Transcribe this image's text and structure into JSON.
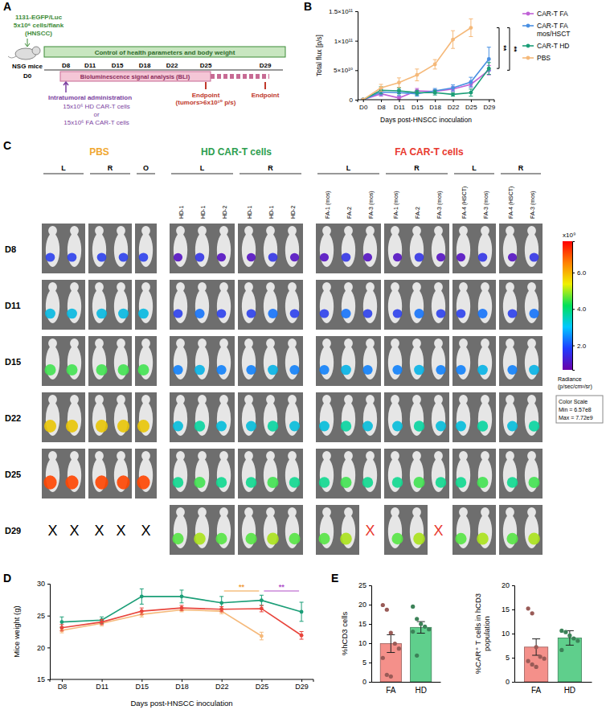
{
  "diagram_a": {
    "panel": "A",
    "cells": [
      "1131-EGFP/Luc",
      "5x10⁶ cells/flank",
      "(HNSCC)"
    ],
    "mouse_label": "NSG mice",
    "start_day": "D0",
    "control_bar": "Control of health parameters and body weight",
    "days": [
      "D8",
      "D11",
      "D15",
      "D18",
      "D22",
      "D25",
      "D29"
    ],
    "bli_bar": "Bioluminescence signal analysis (BLI)",
    "endpoint_early": "Endpoint (tumors>6x10¹⁰ p/s)",
    "endpoint_final": "Endpoint",
    "treatment_title": "Intratumoral administration",
    "treatment_options": [
      "15x10⁶ HD CAR-T cells",
      "or",
      "15x10⁶ FA CAR-T cells"
    ]
  },
  "chart_data": [
    {
      "panel": "B",
      "type": "line",
      "marker": "circle",
      "legend": "right",
      "categories": [
        "D0",
        "D8",
        "D11",
        "D15",
        "D18",
        "D22",
        "D25",
        "D29"
      ],
      "x_label": "Days post-HNSCC inoculation",
      "y_label": "Total flux [p/s]",
      "ylim": [
        0,
        150000000000
      ],
      "yticks": [
        0,
        {
          "value": 50000000000,
          "label": "5×10¹⁰"
        },
        {
          "value": 100000000000,
          "label": "1×10¹¹"
        },
        {
          "value": 150000000000,
          "label": "1.5×10¹¹"
        }
      ],
      "series": [
        {
          "name": "CAR-T FA",
          "color": "#c061d6",
          "values": [
            0,
            10000000000.0,
            3000000000.0,
            15000000000.0,
            14000000000.0,
            18000000000.0,
            26000000000.0,
            50000000000.0
          ],
          "error": [
            0,
            4000000000.0,
            3000000000.0,
            4000000000.0,
            3000000000.0,
            4000000000.0,
            5000000000.0,
            8000000000.0
          ]
        },
        {
          "name": "CAR-T FA mos/HSCT",
          "color": "#4a90e2",
          "values": [
            0,
            13000000000.0,
            12000000000.0,
            10000000000.0,
            15000000000.0,
            20000000000.0,
            30000000000.0,
            69000000000.0
          ],
          "error": [
            0,
            5000000000.0,
            5000000000.0,
            4000000000.0,
            4000000000.0,
            5000000000.0,
            8000000000.0,
            20000000000.0
          ]
        },
        {
          "name": "CAR-T HD",
          "color": "#1b9e77",
          "values": [
            0,
            16000000000.0,
            15000000000.0,
            12000000000.0,
            12000000000.0,
            9000000000.0,
            12000000000.0,
            53000000000.0
          ],
          "error": [
            0,
            6000000000.0,
            5000000000.0,
            4000000000.0,
            4000000000.0,
            3000000000.0,
            6000000000.0,
            10000000000.0
          ]
        },
        {
          "name": "PBS",
          "color": "#f5b97a",
          "values": [
            0,
            20000000000.0,
            29000000000.0,
            42000000000.0,
            60000000000.0,
            102000000000.0,
            122000000000.0,
            null
          ],
          "error": [
            0,
            6000000000.0,
            8000000000.0,
            10000000000.0,
            8000000000.0,
            15000000000.0,
            15000000000.0,
            null
          ]
        }
      ],
      "annotations": [
        {
          "text": "**",
          "between": [
            "CAR-T HD",
            "PBS"
          ]
        },
        {
          "text": "**",
          "between": [
            "CAR-T FA",
            "PBS"
          ]
        }
      ]
    },
    {
      "panel": "D",
      "type": "line",
      "marker": "circle",
      "categories": [
        "D8",
        "D11",
        "D15",
        "D18",
        "D22",
        "D25",
        "D29"
      ],
      "x_label": "Days post-HNSCC inoculation",
      "y_label": "Mice weight (g)",
      "ylim": [
        15,
        30
      ],
      "yticks": [
        15,
        20,
        25,
        30
      ],
      "series": [
        {
          "color": "#f5b97a",
          "values": [
            22.7,
            23.8,
            25.2,
            25.9,
            25.7,
            21.8,
            null
          ],
          "error": [
            0.4,
            0.4,
            0.4,
            0.3,
            0.4,
            0.6,
            null
          ]
        },
        {
          "color": "#1b9e77",
          "values": [
            24.0,
            24.3,
            28.0,
            28.0,
            27.0,
            27.4,
            25.6
          ],
          "error": [
            0.8,
            0.5,
            1.2,
            1.0,
            1.0,
            0.8,
            1.5
          ]
        },
        {
          "color": "#e8453c",
          "values": [
            23.1,
            24.0,
            25.7,
            26.2,
            26.0,
            26.1,
            21.9
          ],
          "error": [
            0.5,
            0.4,
            0.5,
            0.4,
            0.4,
            0.5,
            0.6
          ]
        }
      ],
      "annotations": [
        {
          "text": "**",
          "color": "#f0a040",
          "from": "D22",
          "to": "D25"
        },
        {
          "text": "**",
          "color": "#b04fc8",
          "from": "D25",
          "to": "D29"
        }
      ]
    },
    {
      "panel": "E",
      "type": "bar",
      "categories": [
        "FA",
        "HD"
      ],
      "values": [
        9.9,
        14.1
      ],
      "error": [
        2.3,
        1.5
      ],
      "points": [
        [
          19.9,
          18.7,
          12.7,
          9.9,
          8.6,
          6.2,
          1.8,
          1.4
        ],
        [
          19.5,
          16.3,
          15.0,
          14.3,
          13.6,
          13.0,
          6.8
        ]
      ],
      "colors": [
        "#f4908a",
        "#5fcf8c"
      ],
      "y_label": "%hCD3 cells",
      "ylim": [
        0,
        25
      ],
      "yticks": [
        0,
        5,
        10,
        15,
        20,
        25
      ]
    },
    {
      "type": "bar",
      "categories": [
        "FA",
        "HD"
      ],
      "values": [
        7.2,
        9.1
      ],
      "error": [
        1.7,
        1.5
      ],
      "points": [
        [
          15.2,
          14.2,
          7.2,
          5.2,
          4.8,
          4.3,
          3.6,
          3.1
        ],
        [
          10.6,
          10.3,
          9.6,
          9.0,
          8.5,
          6.6
        ]
      ],
      "colors": [
        "#f4908a",
        "#5fcf8c"
      ],
      "y_label": "%CAR⁺ T cells in hCD3 population",
      "ylim": [
        0,
        20
      ],
      "yticks": [
        0,
        5,
        10,
        15,
        20
      ]
    }
  ],
  "image_panel_c": {
    "panel": "C",
    "groups": [
      {
        "title": "PBS",
        "color": "#f0a830",
        "x_color": "#000000",
        "boxes": [
          {
            "side": "L",
            "mice": [
              null,
              null
            ]
          },
          {
            "side": "R",
            "mice": [
              null,
              null
            ]
          },
          {
            "side": "O",
            "mice": [
              null
            ]
          }
        ]
      },
      {
        "title": "HD CAR-T cells",
        "color": "#2e9e4f",
        "boxes": [
          {
            "side": "L",
            "mice": [
              "HD-1",
              "HD-1",
              "HD-2"
            ]
          },
          {
            "side": "R",
            "mice": [
              "HD-1",
              "HD-1",
              "HD-2"
            ]
          }
        ]
      },
      {
        "title": "FA CAR-T cells",
        "color": "#e8382e",
        "x_color": "#e8382e",
        "boxes": [
          {
            "side": "L",
            "mice": [
              "FA-1 (mos)",
              "FA-2",
              "FA-3 (mos)"
            ]
          },
          {
            "side": "R",
            "mice": [
              "FA-1 (mos)",
              "FA-2",
              "FA-3 (mos)"
            ]
          },
          {
            "side": "L",
            "mice": [
              "FA-4 (HSCT)",
              "FA-3 (mos)"
            ]
          },
          {
            "side": "R",
            "mice": [
              "FA-4 (HSCT)",
              "FA-3 (mos)"
            ]
          }
        ]
      }
    ],
    "rows": [
      {
        "day": "D8",
        "slots": [
          null,
          null,
          null,
          null,
          null,
          null,
          null,
          null,
          null,
          null,
          null,
          null,
          null,
          null,
          null,
          null,
          null,
          null,
          null,
          null,
          null
        ]
      },
      {
        "day": "D11",
        "slots": [
          null,
          null,
          null,
          null,
          null,
          null,
          null,
          null,
          null,
          null,
          null,
          null,
          null,
          null,
          null,
          null,
          null,
          null,
          null,
          null,
          null
        ]
      },
      {
        "day": "D15",
        "slots": [
          null,
          null,
          null,
          null,
          null,
          null,
          null,
          null,
          null,
          null,
          null,
          null,
          null,
          null,
          null,
          null,
          null,
          null,
          null,
          null,
          null
        ]
      },
      {
        "day": "D22",
        "slots": [
          null,
          null,
          null,
          null,
          null,
          null,
          null,
          null,
          null,
          null,
          null,
          null,
          null,
          null,
          null,
          null,
          null,
          null,
          null,
          null,
          null
        ]
      },
      {
        "day": "D25",
        "slots": [
          null,
          null,
          null,
          null,
          null,
          null,
          null,
          null,
          null,
          null,
          null,
          null,
          null,
          null,
          null,
          null,
          null,
          null,
          null,
          null,
          null
        ]
      },
      {
        "day": "D29",
        "slots": [
          "X",
          "X",
          "X",
          "X",
          "X",
          null,
          null,
          null,
          null,
          null,
          null,
          null,
          null,
          "X",
          null,
          null,
          "X",
          null,
          null,
          null,
          null
        ]
      }
    ],
    "colorbar": {
      "multiplier": "x10⁹",
      "min": 657000000.0,
      "max": 7720000000.0,
      "ticks": [
        {
          "value": 2000000000.0,
          "label": "2.0"
        },
        {
          "value": 4000000000.0,
          "label": "4.0"
        },
        {
          "value": 6000000000.0,
          "label": "6.0"
        }
      ],
      "title": "Radiance (p/sec/cm²/sr)",
      "scale_title": "Color Scale",
      "min_label": "Min = 6.57e8",
      "max_label": "Max = 7.72e9"
    }
  }
}
